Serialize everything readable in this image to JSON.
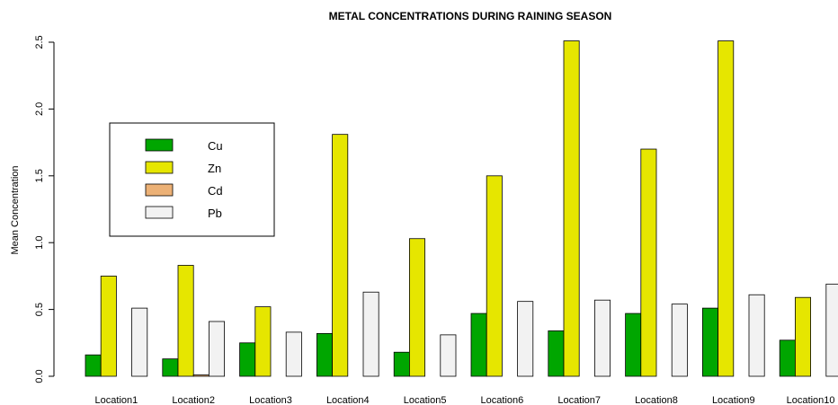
{
  "chart_data": {
    "type": "bar",
    "title": "METAL CONCENTRATIONS DURING RAINING SEASON",
    "xlabel": "",
    "ylabel": "Mean Concentration",
    "ylim": [
      0,
      2.5
    ],
    "yticks": [
      "0.0",
      "0.5",
      "1.0",
      "1.5",
      "2.0",
      "2.5"
    ],
    "categories": [
      "Location1",
      "Location2",
      "Location3",
      "Location4",
      "Location5",
      "Location6",
      "Location7",
      "Location8",
      "Location9",
      "Location10"
    ],
    "series": [
      {
        "name": "Cu",
        "color": "#00a600",
        "values": [
          0.16,
          0.13,
          0.25,
          0.32,
          0.18,
          0.47,
          0.34,
          0.47,
          0.51,
          0.27
        ]
      },
      {
        "name": "Zn",
        "color": "#e6e600",
        "values": [
          0.75,
          0.83,
          0.52,
          1.81,
          1.03,
          1.5,
          2.51,
          1.7,
          2.51,
          0.59
        ]
      },
      {
        "name": "Cd",
        "color": "#ecb176",
        "values": [
          0.0,
          0.01,
          0.0,
          0.0,
          0.0,
          0.0,
          0.0,
          0.0,
          0.0,
          0.0
        ]
      },
      {
        "name": "Pb",
        "color": "#f2f2f2",
        "values": [
          0.51,
          0.41,
          0.33,
          0.63,
          0.31,
          0.56,
          0.57,
          0.54,
          0.61,
          0.69
        ]
      }
    ],
    "legend": {
      "position": "top-left"
    },
    "grid": false
  }
}
